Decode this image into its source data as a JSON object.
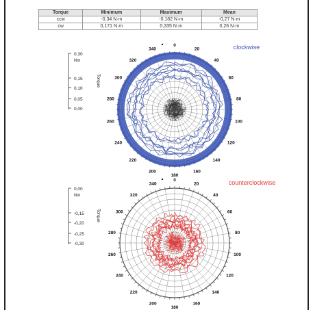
{
  "table": {
    "headers": [
      "Torque",
      "Minimum",
      "Maximum",
      "Mean"
    ],
    "rows": [
      [
        "ccw",
        "-0,34 N·m",
        "-0,182 N·m",
        "-0,27 N·m"
      ],
      [
        "cw",
        "0,171 N·m",
        "0,335 N·m",
        "0,26 N·m"
      ]
    ]
  },
  "chart_data": [
    {
      "type": "polar",
      "title": "clockwise",
      "color": "#3b55b5",
      "angle_labels": [
        "0",
        "20",
        "40",
        "60",
        "80",
        "100",
        "120",
        "140",
        "160",
        "180",
        "200",
        "220",
        "240",
        "260",
        "280",
        "300",
        "320",
        "340"
      ],
      "scale": {
        "ylabel": "Torque",
        "unit": "Nm",
        "ticks": [
          "0,30",
          "0,15",
          "0,10",
          "0,05",
          "0,00"
        ]
      },
      "series": [
        {
          "label_free": true,
          "approx_radius_range_nm": [
            0.17,
            0.335
          ],
          "mean_nm": 0.26
        }
      ]
    },
    {
      "type": "polar",
      "title": "counterclockwise",
      "color": "#e23a3a",
      "angle_labels": [
        "0",
        "20",
        "40",
        "60",
        "80",
        "100",
        "120",
        "140",
        "160",
        "180",
        "200",
        "220",
        "240",
        "260",
        "280",
        "300",
        "320",
        "340"
      ],
      "scale": {
        "ylabel": "Torque",
        "unit": "Nm",
        "ticks": [
          "0,00",
          "-0,15",
          "-0,20",
          "-0,25",
          "-0,30"
        ]
      },
      "series": [
        {
          "label_free": true,
          "approx_radius_range_nm": [
            -0.34,
            -0.182
          ],
          "mean_nm": -0.27
        }
      ]
    }
  ]
}
